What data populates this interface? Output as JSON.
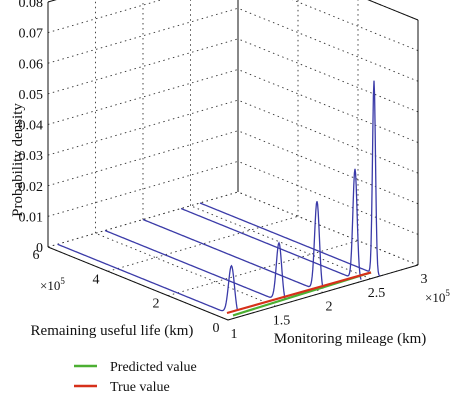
{
  "chart_data": {
    "type": "line",
    "title": "",
    "zlabel": "Probability density",
    "xlabel": "Monitoring mileage (km)",
    "ylabel": "Remaining useful life (km)",
    "x_multiplier": "×10",
    "x_multiplier_exp": "5",
    "y_multiplier": "×10",
    "y_multiplier_exp": "5",
    "xlim": [
      1,
      3
    ],
    "ylim": [
      0,
      6
    ],
    "zlim": [
      0,
      0.08
    ],
    "x_ticks": [
      "1",
      "1.5",
      "2",
      "2.5",
      "3"
    ],
    "y_ticks": [
      "0",
      "2",
      "4",
      "6"
    ],
    "z_ticks": [
      "0",
      "0.01",
      "0.02",
      "0.03",
      "0.04",
      "0.05",
      "0.06",
      "0.07",
      "0.08"
    ],
    "grid": true,
    "legend_position": "bottom-left",
    "pdf_curves": [
      {
        "x": 1.1,
        "peak_rul": 0.2,
        "peak_density": 0.016,
        "width": 0.1
      },
      {
        "x": 1.6,
        "peak_rul": 0.2,
        "peak_density": 0.019,
        "width": 0.09
      },
      {
        "x": 2.0,
        "peak_rul": 0.2,
        "peak_density": 0.029,
        "width": 0.08
      },
      {
        "x": 2.4,
        "peak_rul": 0.2,
        "peak_density": 0.036,
        "width": 0.07
      },
      {
        "x": 2.6,
        "peak_rul": 0.2,
        "peak_density": 0.063,
        "width": 0.05
      }
    ],
    "series": [
      {
        "name": "Predicted value",
        "color": "#4caf32",
        "x": [
          1.1,
          2.6
        ],
        "y": [
          0.15,
          0.3
        ]
      },
      {
        "name": "True value",
        "color": "#d6301a",
        "x": [
          1.1,
          2.6
        ],
        "y": [
          0.35,
          0.3
        ]
      }
    ],
    "curve_color": "#3a3aa8"
  }
}
